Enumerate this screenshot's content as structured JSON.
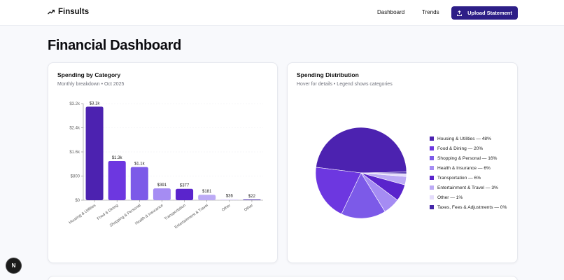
{
  "nav": {
    "brand": "Finsults",
    "brand_icon": "trending-up-icon",
    "links": [
      "Dashboard",
      "Trends"
    ],
    "upload_label": "Upload Statement",
    "upload_icon": "upload-icon",
    "accent": "#2d1e87"
  },
  "page": {
    "title": "Financial Dashboard"
  },
  "cards": {
    "bar": {
      "title": "Spending by Category",
      "subtitle": "Monthly breakdown • Oct 2025"
    },
    "pie": {
      "title": "Spending Distribution",
      "subtitle": "Hover for details • Legend shows categories"
    }
  },
  "badge": {
    "label": "N"
  },
  "chart_data": [
    {
      "type": "bar",
      "title": "Spending by Category",
      "subtitle": "Monthly breakdown • Oct 2025",
      "categories": [
        "Housing & Utilities",
        "Food & Dining",
        "Shopping & Personal",
        "Health & Insurance",
        "Transportation",
        "Entertainment & Travel",
        "Other",
        "Other"
      ],
      "values": [
        3100,
        1300,
        1100,
        391,
        377,
        181,
        36,
        22
      ],
      "value_labels": [
        "$3.1k",
        "$1.3k",
        "$1.1k",
        "$391",
        "$377",
        "$181",
        "$36",
        "$22"
      ],
      "colors": [
        "#4c22b0",
        "#6d37e0",
        "#7c5ae8",
        "#a58cf3",
        "#5a24cc",
        "#bcaaf5",
        "#e4dcfb",
        "#4527a8"
      ],
      "yticks": [
        "$0",
        "$800",
        "$1.6k",
        "$2.4k",
        "$3.2k"
      ],
      "ytick_values": [
        0,
        800,
        1600,
        2400,
        3200
      ],
      "ylim": [
        0,
        3200
      ],
      "xlabel": "",
      "ylabel": "",
      "grid": true
    },
    {
      "type": "pie",
      "title": "Spending Distribution",
      "subtitle": "Hover for details • Legend shows categories",
      "labels": [
        "Housing & Utilities",
        "Food & Dining",
        "Shopping & Personal",
        "Health & Insurance",
        "Transportation",
        "Entertainment & Travel",
        "Other",
        "Taxes, Fees & Adjustments"
      ],
      "values": [
        48,
        20,
        16,
        6,
        6,
        3,
        1,
        0
      ],
      "legend": [
        "Housing & Utilities — 48%",
        "Food & Dining — 20%",
        "Shopping & Personal — 16%",
        "Health & Insurance — 6%",
        "Transportation — 6%",
        "Entertainment & Travel — 3%",
        "Other — 1%",
        "Taxes, Fees & Adjustments — 0%"
      ],
      "colors": [
        "#4c22b0",
        "#6d37e0",
        "#7c5ae8",
        "#a58cf3",
        "#5a24cc",
        "#bcaaf5",
        "#e4dcfb",
        "#4527a8"
      ],
      "legend_position": "right"
    }
  ]
}
